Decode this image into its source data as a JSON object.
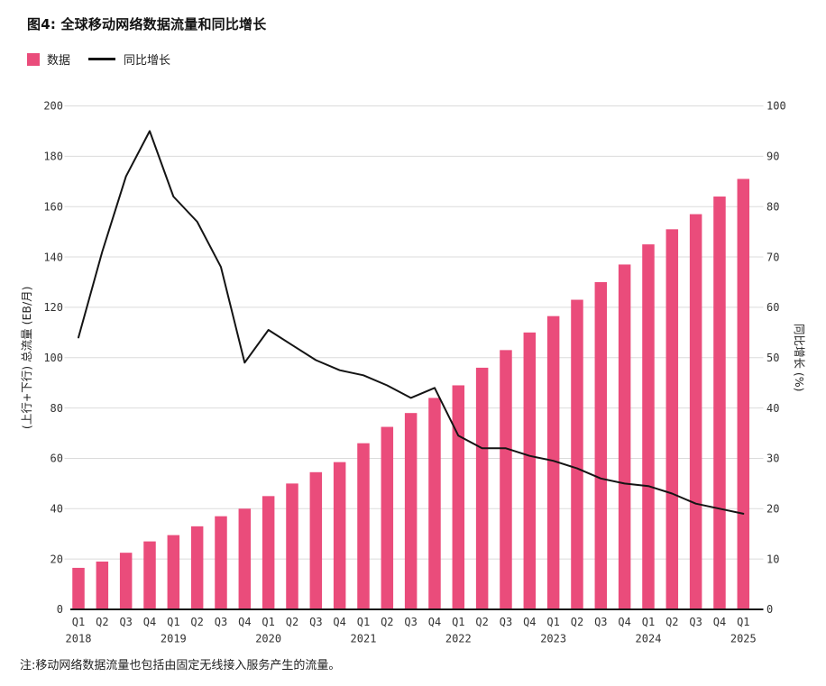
{
  "title": "图4: 全球移动网络数据流量和同比增长",
  "note": "注:移动网络数据流量也包括由固定无线接入服务产生的流量。",
  "legend": {
    "bar_label": "数据",
    "line_label": "同比增长"
  },
  "colors": {
    "bar": "#EA4C7B",
    "line": "#141414",
    "grid": "#DBDBDB",
    "axis": "#1A1A1A",
    "tick_text": "#333333"
  },
  "chart_data": {
    "type": "bar",
    "combo_with_line": true,
    "grid": true,
    "legend_position": "top-left",
    "categories": [
      "Q1",
      "Q2",
      "Q3",
      "Q4",
      "Q1",
      "Q2",
      "Q3",
      "Q4",
      "Q1",
      "Q2",
      "Q3",
      "Q4",
      "Q1",
      "Q2",
      "Q3",
      "Q4",
      "Q1",
      "Q2",
      "Q3",
      "Q4",
      "Q1",
      "Q2",
      "Q3",
      "Q4",
      "Q1",
      "Q2",
      "Q3",
      "Q4",
      "Q1"
    ],
    "years": [
      {
        "label": "2018",
        "at": 0
      },
      {
        "label": "2019",
        "at": 4
      },
      {
        "label": "2020",
        "at": 8
      },
      {
        "label": "2021",
        "at": 12
      },
      {
        "label": "2022",
        "at": 16
      },
      {
        "label": "2023",
        "at": 20
      },
      {
        "label": "2024",
        "at": 24
      },
      {
        "label": "2025",
        "at": 28
      }
    ],
    "series": [
      {
        "name": "数据",
        "type": "bar",
        "axis": "left",
        "values": [
          16.5,
          19,
          22.5,
          27,
          29.5,
          33,
          37,
          40,
          45,
          50,
          54.5,
          58.5,
          66,
          72.5,
          78,
          84,
          89,
          96,
          103,
          110,
          116.5,
          123,
          130,
          137,
          145,
          151,
          157,
          164,
          171
        ]
      },
      {
        "name": "同比增长",
        "type": "line",
        "axis": "right",
        "values": [
          54,
          71,
          86,
          95,
          82,
          77,
          68,
          49,
          55.5,
          52.5,
          49.5,
          47.5,
          46.5,
          44.5,
          42,
          44,
          34.5,
          32,
          32,
          30.5,
          29.5,
          28,
          26,
          25,
          24.5,
          23,
          21,
          20,
          19
        ]
      }
    ],
    "left_axis": {
      "label": "(上行+下行) 总流量 (EB/月)",
      "min": 0,
      "max": 200,
      "step": 20
    },
    "right_axis": {
      "label": "同比增长 (%)",
      "min": 0,
      "max": 100,
      "step": 10
    }
  }
}
